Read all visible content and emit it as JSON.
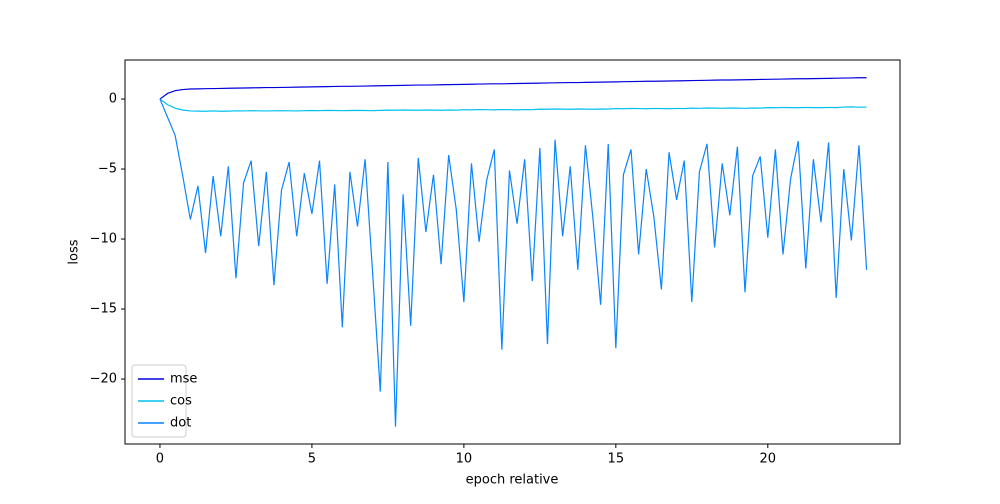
{
  "chart_data": {
    "type": "line",
    "xlabel": "epoch relative",
    "ylabel": "loss",
    "x": [
      0,
      0.25,
      0.5,
      0.75,
      1,
      1.25,
      1.5,
      1.75,
      2,
      2.25,
      2.5,
      2.75,
      3,
      3.25,
      3.5,
      3.75,
      4,
      4.25,
      4.5,
      4.75,
      5,
      5.25,
      5.5,
      5.75,
      6,
      6.25,
      6.5,
      6.75,
      7,
      7.25,
      7.5,
      7.75,
      8,
      8.25,
      8.5,
      8.75,
      9,
      9.25,
      9.5,
      9.75,
      10,
      10.25,
      10.5,
      10.75,
      11,
      11.25,
      11.5,
      11.75,
      12,
      12.25,
      12.5,
      12.75,
      13,
      13.25,
      13.5,
      13.75,
      14,
      14.25,
      14.5,
      14.75,
      15,
      15.25,
      15.5,
      15.75,
      16,
      16.25,
      16.5,
      16.75,
      17,
      17.25,
      17.5,
      17.75,
      18,
      18.25,
      18.5,
      18.75,
      19,
      19.25,
      19.5,
      19.75,
      20,
      20.25,
      20.5,
      20.75,
      21,
      21.25,
      21.5,
      21.75,
      22,
      22.25,
      22.5,
      22.75,
      23,
      23.25
    ],
    "series": [
      {
        "name": "mse",
        "color": "#0000dd",
        "values": [
          0,
          0.4,
          0.6,
          0.68,
          0.72,
          0.73,
          0.74,
          0.75,
          0.76,
          0.77,
          0.78,
          0.79,
          0.8,
          0.81,
          0.82,
          0.82,
          0.83,
          0.84,
          0.85,
          0.86,
          0.87,
          0.88,
          0.89,
          0.9,
          0.91,
          0.91,
          0.92,
          0.93,
          0.94,
          0.95,
          0.96,
          0.97,
          0.98,
          0.99,
          1.0,
          1.0,
          1.01,
          1.02,
          1.03,
          1.04,
          1.05,
          1.06,
          1.07,
          1.08,
          1.09,
          1.09,
          1.1,
          1.11,
          1.12,
          1.13,
          1.14,
          1.15,
          1.16,
          1.17,
          1.18,
          1.18,
          1.19,
          1.2,
          1.21,
          1.22,
          1.23,
          1.24,
          1.25,
          1.26,
          1.27,
          1.27,
          1.28,
          1.29,
          1.3,
          1.31,
          1.32,
          1.33,
          1.34,
          1.35,
          1.36,
          1.36,
          1.37,
          1.38,
          1.39,
          1.4,
          1.41,
          1.42,
          1.43,
          1.44,
          1.45,
          1.45,
          1.46,
          1.47,
          1.48,
          1.49,
          1.5,
          1.51,
          1.52,
          1.52
        ]
      },
      {
        "name": "cos",
        "color": "#00c0f0",
        "values": [
          0,
          -0.4,
          -0.65,
          -0.78,
          -0.85,
          -0.86,
          -0.87,
          -0.85,
          -0.87,
          -0.86,
          -0.84,
          -0.85,
          -0.83,
          -0.84,
          -0.85,
          -0.84,
          -0.83,
          -0.84,
          -0.85,
          -0.83,
          -0.82,
          -0.83,
          -0.81,
          -0.82,
          -0.83,
          -0.82,
          -0.81,
          -0.82,
          -0.83,
          -0.81,
          -0.79,
          -0.8,
          -0.78,
          -0.79,
          -0.8,
          -0.78,
          -0.79,
          -0.8,
          -0.78,
          -0.79,
          -0.76,
          -0.77,
          -0.75,
          -0.76,
          -0.77,
          -0.75,
          -0.76,
          -0.77,
          -0.75,
          -0.76,
          -0.72,
          -0.73,
          -0.71,
          -0.72,
          -0.73,
          -0.71,
          -0.72,
          -0.73,
          -0.71,
          -0.72,
          -0.68,
          -0.69,
          -0.67,
          -0.68,
          -0.69,
          -0.67,
          -0.68,
          -0.69,
          -0.67,
          -0.68,
          -0.65,
          -0.66,
          -0.64,
          -0.65,
          -0.66,
          -0.64,
          -0.65,
          -0.66,
          -0.64,
          -0.65,
          -0.61,
          -0.62,
          -0.6,
          -0.61,
          -0.62,
          -0.6,
          -0.61,
          -0.62,
          -0.6,
          -0.61,
          -0.57,
          -0.56,
          -0.58,
          -0.57
        ]
      },
      {
        "name": "dot",
        "color": "#0a84ff",
        "values": [
          0,
          -1.3,
          -2.6,
          -5.5,
          -8.6,
          -6.2,
          -11,
          -5.5,
          -9.8,
          -4.8,
          -12.8,
          -6,
          -4.4,
          -10.5,
          -5.2,
          -13.3,
          -6.5,
          -4.5,
          -9.8,
          -5.3,
          -8.2,
          -4.4,
          -13.2,
          -6.1,
          -16.3,
          -5.2,
          -9.1,
          -4.3,
          -12.5,
          -20.9,
          -4.5,
          -23.4,
          -6.8,
          -16.2,
          -4.2,
          -9.5,
          -5.4,
          -11.8,
          -4.0,
          -7.9,
          -14.5,
          -4.6,
          -10.2,
          -5.8,
          -3.6,
          -17.9,
          -5.1,
          -8.9,
          -4.3,
          -13,
          -3.5,
          -17.5,
          -2.9,
          -9.8,
          -4.8,
          -12.2,
          -3.3,
          -8.6,
          -14.7,
          -3.2,
          -17.8,
          -5.4,
          -3.6,
          -11.1,
          -5.0,
          -8.4,
          -13.6,
          -3.8,
          -7.2,
          -4.4,
          -14.5,
          -5.2,
          -3.2,
          -10.6,
          -4.6,
          -8.3,
          -3.4,
          -13.8,
          -5.5,
          -4.1,
          -9.9,
          -3.6,
          -11.1,
          -5.7,
          -3.0,
          -12.1,
          -4.3,
          -8.8,
          -3.1,
          -14.2,
          -5.0,
          -10.1,
          -3.3,
          -12.2
        ]
      }
    ],
    "xlim": [
      -1.15,
      24.35
    ],
    "ylim": [
      -24.64,
      2.79
    ],
    "xticks": [
      0,
      5,
      10,
      15,
      20
    ],
    "yticks": [
      {
        "value": -20,
        "label": "−20"
      },
      {
        "value": -15,
        "label": "−15"
      },
      {
        "value": -10,
        "label": "−10"
      },
      {
        "value": -5,
        "label": "−5"
      },
      0
    ],
    "legend": "lower left"
  }
}
